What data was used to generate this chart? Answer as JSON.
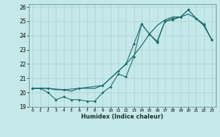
{
  "xlabel": "Humidex (Indice chaleur)",
  "bg_color": "#c5e8e8",
  "grid_color": "#aed4d4",
  "line_color": "#1a6b6b",
  "xlim": [
    -0.5,
    23.5
  ],
  "ylim": [
    19,
    26.2
  ],
  "x_ticks": [
    0,
    1,
    2,
    3,
    4,
    5,
    6,
    7,
    8,
    9,
    10,
    11,
    12,
    13,
    14,
    15,
    16,
    17,
    18,
    19,
    20,
    21,
    22,
    23
  ],
  "y_ticks": [
    19,
    20,
    21,
    22,
    23,
    24,
    25,
    26
  ],
  "line1_x": [
    0,
    1,
    2,
    3,
    4,
    5,
    6,
    7,
    8,
    9,
    10,
    11,
    12,
    13,
    14,
    15,
    16,
    17,
    18,
    19,
    20,
    21,
    22,
    23
  ],
  "line1_y": [
    20.3,
    20.3,
    20.0,
    19.5,
    19.7,
    19.5,
    19.5,
    19.4,
    19.4,
    20.0,
    20.4,
    21.3,
    21.1,
    22.5,
    24.8,
    24.1,
    23.5,
    25.0,
    25.1,
    25.3,
    25.8,
    25.2,
    24.7,
    23.7
  ],
  "line2_x": [
    0,
    1,
    2,
    3,
    4,
    5,
    6,
    7,
    8,
    9,
    10,
    11,
    12,
    13,
    14,
    15,
    16,
    17,
    18,
    19,
    20,
    21,
    22,
    23
  ],
  "line2_y": [
    20.3,
    20.3,
    20.3,
    20.2,
    20.2,
    20.1,
    20.3,
    20.3,
    20.3,
    20.5,
    21.0,
    21.5,
    22.0,
    22.6,
    23.3,
    24.1,
    24.7,
    25.1,
    25.3,
    25.3,
    25.5,
    25.2,
    24.7,
    23.7
  ],
  "line3_x": [
    0,
    2,
    4,
    6,
    9,
    11,
    12,
    13,
    14,
    15,
    16,
    17,
    18,
    19,
    20,
    21,
    22,
    23
  ],
  "line3_y": [
    20.3,
    20.3,
    20.2,
    20.3,
    20.5,
    21.5,
    22.0,
    23.4,
    24.8,
    24.1,
    23.6,
    25.0,
    25.2,
    25.3,
    25.8,
    25.2,
    24.8,
    23.7
  ]
}
